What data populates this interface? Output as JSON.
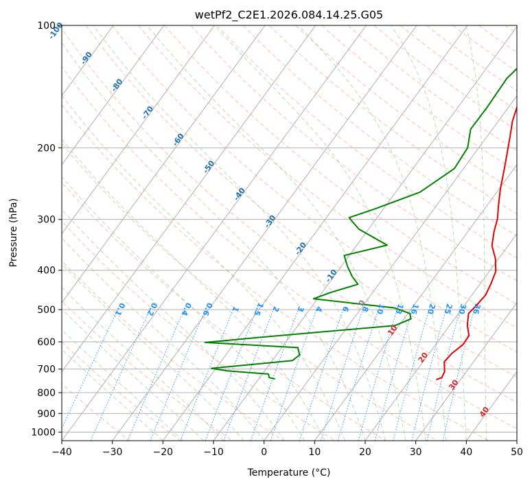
{
  "chart_data": {
    "type": "line",
    "title": "wetPf2_C2E1.2026.084.14.25.G05",
    "xlabel": "Temperature (°C)",
    "ylabel": "Pressure (hPa)",
    "xlim": [
      -40,
      50
    ],
    "ylim": [
      1050,
      100
    ],
    "y_scale": "log",
    "x_ticks": [
      -40,
      -30,
      -20,
      -10,
      0,
      10,
      20,
      30,
      40,
      50
    ],
    "y_ticks": [
      100,
      200,
      300,
      400,
      500,
      600,
      700,
      800,
      900,
      1000
    ],
    "grid": true,
    "series": [
      {
        "color": "#e00000",
        "points": [
          [
            2,
            100
          ],
          [
            0.6,
            112
          ],
          [
            0.2,
            127
          ],
          [
            0.6,
            142
          ],
          [
            1.5,
            157
          ],
          [
            2.8,
            172
          ],
          [
            4.5,
            187
          ],
          [
            6,
            202
          ],
          [
            8,
            224
          ],
          [
            10.2,
            252
          ],
          [
            12.4,
            279
          ],
          [
            14,
            299
          ],
          [
            15.2,
            322
          ],
          [
            16.8,
            348
          ],
          [
            19.4,
            375
          ],
          [
            21.3,
            403
          ],
          [
            22.1,
            431
          ],
          [
            22.7,
            460
          ],
          [
            22.4,
            487
          ],
          [
            22.0,
            511
          ],
          [
            23.5,
            547
          ],
          [
            25.3,
            579
          ],
          [
            25.4,
            610
          ],
          [
            24.5,
            640
          ],
          [
            24.2,
            672
          ],
          [
            25.7,
            710
          ],
          [
            26.0,
            735
          ],
          [
            25.2,
            743
          ]
        ]
      },
      {
        "color": "#008000",
        "points": [
          [
            -1.8,
            100
          ],
          [
            -1.5,
            112
          ],
          [
            -3.3,
            120
          ],
          [
            -4.5,
            135
          ],
          [
            -4.2,
            160
          ],
          [
            -4.3,
            180
          ],
          [
            -2.2,
            200
          ],
          [
            -1.8,
            225
          ],
          [
            -5.2,
            257
          ],
          [
            -11.5,
            282
          ],
          [
            -15.5,
            297
          ],
          [
            -11.9,
            317
          ],
          [
            -4.0,
            347
          ],
          [
            -11.0,
            368
          ],
          [
            -8.7,
            392
          ],
          [
            -6.3,
            415
          ],
          [
            -4.1,
            433
          ],
          [
            -8.2,
            453
          ],
          [
            -10.8,
            470
          ],
          [
            -2.4,
            482
          ],
          [
            6.5,
            495
          ],
          [
            10.4,
            511
          ],
          [
            11.4,
            527
          ],
          [
            9.2,
            547
          ],
          [
            -13.4,
            581
          ],
          [
            -25.9,
            602
          ],
          [
            -6.8,
            620
          ],
          [
            -5.4,
            646
          ],
          [
            -6.0,
            667
          ],
          [
            -20.9,
            697
          ],
          [
            -17.4,
            707
          ],
          [
            -8.8,
            720
          ],
          [
            -8.1,
            735
          ],
          [
            -6.8,
            740
          ]
        ]
      }
    ],
    "isotherm_labels": [
      "-100",
      "-90",
      "-80",
      "-70",
      "-60",
      "-50",
      "-40",
      "-30",
      "-20",
      "-10",
      "0",
      "10",
      "20",
      "30",
      "40"
    ],
    "mixing_ratio_labels": [
      "0.1",
      "0.2",
      "0.4",
      "0.6",
      "1",
      "1.5",
      "2",
      "3",
      "4",
      "6",
      "8",
      "10",
      "13",
      "16",
      "20",
      "25",
      "30",
      "36"
    ],
    "mixing_ratio_values": [
      0.1,
      0.2,
      0.4,
      0.6,
      1,
      1.5,
      2,
      3,
      4,
      6,
      8,
      10,
      13,
      16,
      20,
      25,
      30,
      36
    ],
    "mixing_ratio_label_pressure": 500,
    "colors": {
      "isotherm_label_cold": "#1f6fb4",
      "isotherm_label_zero": "#808080",
      "isotherm_label_warm": "#d62728",
      "mixing_ratio": "#1e90ff",
      "dry_adiabat": "#fa8060",
      "moist_adiabat": "#2ca02c",
      "grid": "#b0b0b0"
    }
  }
}
